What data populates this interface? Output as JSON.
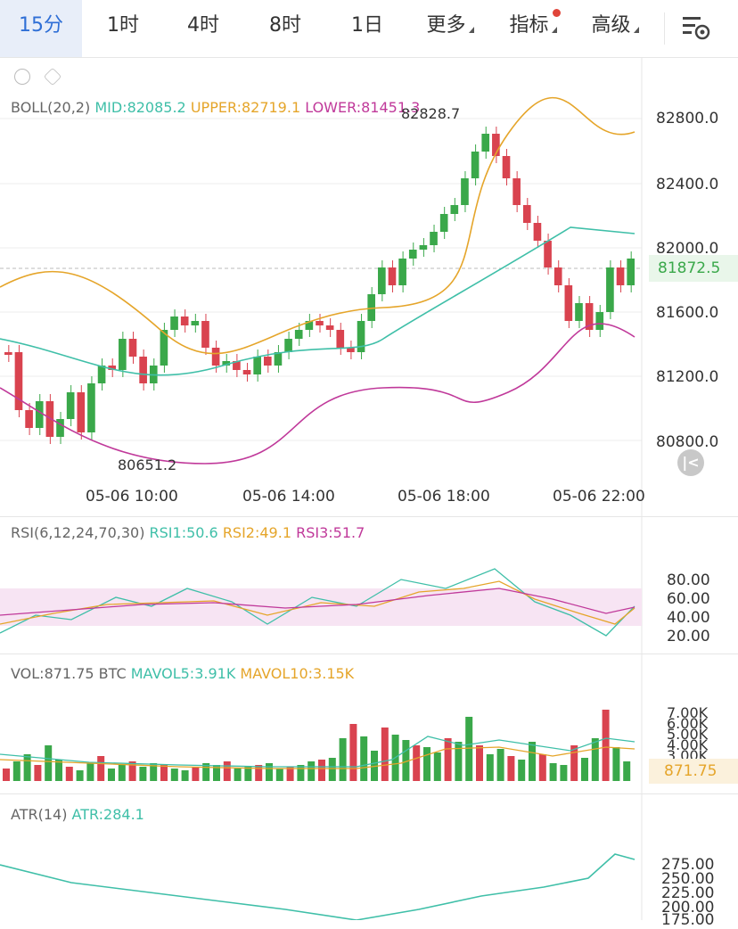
{
  "tabs": [
    {
      "label": "15分",
      "active": true
    },
    {
      "label": "1时"
    },
    {
      "label": "4时"
    },
    {
      "label": "8时"
    },
    {
      "label": "1日"
    },
    {
      "label": "更多"
    },
    {
      "label": "指标"
    },
    {
      "label": "高级"
    }
  ],
  "settings_icon": "settings-icon",
  "boll": {
    "label": "BOLL(20,2)",
    "mid": "MID:82085.2",
    "upper": "UPPER:82719.1",
    "lower": "LOWER:81451.3"
  },
  "main": {
    "yticks": [
      "82800.0",
      "82400.0",
      "82000.0",
      "81600.0",
      "81200.0",
      "80800.0"
    ],
    "current": "81872.5",
    "high_label": "82828.7",
    "low_label": "80651.2",
    "xticks": [
      "05-06 10:00",
      "05-06 14:00",
      "05-06 18:00",
      "05-06 22:00"
    ]
  },
  "rsi": {
    "label": "RSI(6,12,24,70,30)",
    "r1": "RSI1:50.6",
    "r2": "RSI2:49.1",
    "r3": "RSI3:51.7",
    "yticks": [
      "80.00",
      "60.00",
      "40.00",
      "20.00"
    ]
  },
  "vol": {
    "label": "VOL:871.75 BTC",
    "ma5": "MAVOL5:3.91K",
    "ma10": "MAVOL10:3.15K",
    "yticks": [
      "7.00K",
      "6.00K",
      "5.00K",
      "4.00K",
      "3.00K"
    ],
    "current": "871.75"
  },
  "atr": {
    "label": "ATR(14)",
    "value": "ATR:284.1",
    "yticks": [
      "275.00",
      "250.00",
      "225.00",
      "200.00",
      "175.00"
    ]
  },
  "colors": {
    "up": "#3aa84a",
    "down": "#d9434f",
    "mid": "#3fbfa8",
    "upper": "#e5a52a",
    "lower": "#c0399a",
    "accent": "#2f6fd6"
  }
}
